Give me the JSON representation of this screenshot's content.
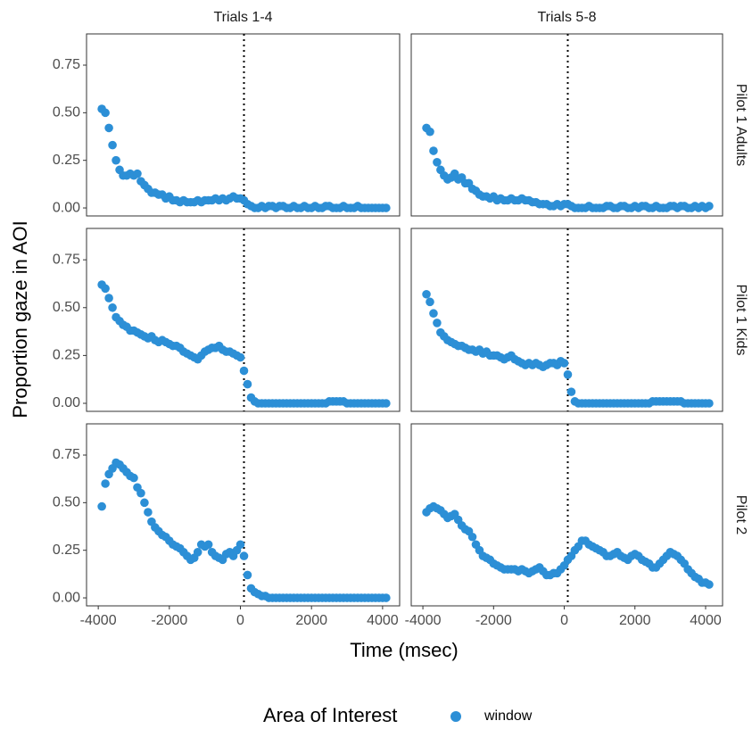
{
  "chart_data": {
    "type": "scatter",
    "xlabel": "Time (msec)",
    "ylabel": "Proportion gaze in AOI",
    "legend_title": "Area of Interest",
    "series_name": "window",
    "color": "#2c8fd6",
    "columns": [
      "Trials 1-4",
      "Trials 5-8"
    ],
    "rows": [
      "Pilot 1 Adults",
      "Pilot 1 Kids",
      "Pilot 2"
    ],
    "xlim": [
      -4330,
      4480
    ],
    "xticks": [
      -4000,
      -2000,
      0,
      2000,
      4000
    ],
    "ylim": [
      -0.042,
      0.914
    ],
    "yticks": [
      {
        "value": 0,
        "label": "0.00"
      },
      0.25,
      {
        "value": 0.5,
        "label": "0.50"
      },
      0.75
    ],
    "vline": 100,
    "x": [
      -3900,
      -3800,
      -3700,
      -3600,
      -3500,
      -3400,
      -3300,
      -3200,
      -3100,
      -3000,
      -2900,
      -2800,
      -2700,
      -2600,
      -2500,
      -2400,
      -2300,
      -2200,
      -2100,
      -2000,
      -1900,
      -1800,
      -1700,
      -1600,
      -1500,
      -1400,
      -1300,
      -1200,
      -1100,
      -1000,
      -900,
      -800,
      -700,
      -600,
      -500,
      -400,
      -300,
      -200,
      -100,
      0,
      100,
      200,
      300,
      400,
      500,
      600,
      700,
      800,
      900,
      1000,
      1100,
      1200,
      1300,
      1400,
      1500,
      1600,
      1700,
      1800,
      1900,
      2000,
      2100,
      2200,
      2300,
      2400,
      2500,
      2600,
      2700,
      2800,
      2900,
      3000,
      3100,
      3200,
      3300,
      3400,
      3500,
      3600,
      3700,
      3800,
      3900,
      4000,
      4100
    ],
    "panels": [
      {
        "values": [
          0.52,
          0.5,
          0.42,
          0.33,
          0.25,
          0.2,
          0.17,
          0.17,
          0.18,
          0.17,
          0.18,
          0.14,
          0.12,
          0.1,
          0.08,
          0.08,
          0.07,
          0.07,
          0.05,
          0.06,
          0.04,
          0.04,
          0.03,
          0.04,
          0.03,
          0.03,
          0.03,
          0.04,
          0.03,
          0.04,
          0.04,
          0.04,
          0.05,
          0.04,
          0.05,
          0.04,
          0.05,
          0.06,
          0.05,
          0.05,
          0.04,
          0.02,
          0.01,
          0.0,
          0.0,
          0.01,
          0.0,
          0.01,
          0.01,
          0.0,
          0.01,
          0.01,
          0.0,
          0.0,
          0.01,
          0.0,
          0.0,
          0.01,
          0.0,
          0.0,
          0.01,
          0.0,
          0.0,
          0.01,
          0.01,
          0.0,
          0.0,
          0.0,
          0.01,
          0.0,
          0.0,
          0.0,
          0.01,
          0.0,
          0.0,
          0.0,
          0.0,
          0.0,
          0.0,
          0.0,
          0.0
        ]
      },
      {
        "values": [
          0.42,
          0.4,
          0.3,
          0.24,
          0.2,
          0.17,
          0.15,
          0.16,
          0.18,
          0.15,
          0.16,
          0.13,
          0.13,
          0.1,
          0.09,
          0.07,
          0.06,
          0.06,
          0.05,
          0.06,
          0.04,
          0.05,
          0.04,
          0.04,
          0.05,
          0.04,
          0.04,
          0.05,
          0.04,
          0.04,
          0.03,
          0.03,
          0.02,
          0.02,
          0.02,
          0.01,
          0.01,
          0.02,
          0.01,
          0.02,
          0.02,
          0.01,
          0.0,
          0.0,
          0.0,
          0.0,
          0.01,
          0.0,
          0.0,
          0.0,
          0.0,
          0.01,
          0.01,
          0.0,
          0.0,
          0.01,
          0.01,
          0.0,
          0.0,
          0.01,
          0.0,
          0.01,
          0.01,
          0.0,
          0.0,
          0.01,
          0.0,
          0.0,
          0.0,
          0.01,
          0.01,
          0.0,
          0.01,
          0.01,
          0.0,
          0.0,
          0.01,
          0.0,
          0.01,
          0.0,
          0.01
        ]
      },
      {
        "values": [
          0.62,
          0.6,
          0.55,
          0.5,
          0.45,
          0.43,
          0.41,
          0.4,
          0.38,
          0.38,
          0.37,
          0.36,
          0.35,
          0.34,
          0.35,
          0.33,
          0.32,
          0.33,
          0.32,
          0.31,
          0.3,
          0.3,
          0.29,
          0.27,
          0.26,
          0.25,
          0.24,
          0.23,
          0.25,
          0.27,
          0.28,
          0.29,
          0.29,
          0.3,
          0.28,
          0.27,
          0.27,
          0.26,
          0.25,
          0.24,
          0.17,
          0.1,
          0.03,
          0.01,
          0.0,
          0.0,
          0.0,
          0.0,
          0.0,
          0.0,
          0.0,
          0.0,
          0.0,
          0.0,
          0.0,
          0.0,
          0.0,
          0.0,
          0.0,
          0.0,
          0.0,
          0.0,
          0.0,
          0.0,
          0.01,
          0.01,
          0.01,
          0.01,
          0.01,
          0.0,
          0.0,
          0.0,
          0.0,
          0.0,
          0.0,
          0.0,
          0.0,
          0.0,
          0.0,
          0.0,
          0.0
        ]
      },
      {
        "values": [
          0.57,
          0.53,
          0.47,
          0.42,
          0.37,
          0.35,
          0.33,
          0.32,
          0.31,
          0.3,
          0.3,
          0.29,
          0.28,
          0.28,
          0.27,
          0.28,
          0.26,
          0.27,
          0.25,
          0.25,
          0.25,
          0.24,
          0.23,
          0.24,
          0.25,
          0.23,
          0.22,
          0.21,
          0.2,
          0.21,
          0.2,
          0.21,
          0.2,
          0.19,
          0.2,
          0.21,
          0.21,
          0.2,
          0.22,
          0.21,
          0.15,
          0.06,
          0.01,
          0.0,
          0.0,
          0.0,
          0.0,
          0.0,
          0.0,
          0.0,
          0.0,
          0.0,
          0.0,
          0.0,
          0.0,
          0.0,
          0.0,
          0.0,
          0.0,
          0.0,
          0.0,
          0.0,
          0.0,
          0.0,
          0.01,
          0.01,
          0.01,
          0.01,
          0.01,
          0.01,
          0.01,
          0.01,
          0.01,
          0.0,
          0.0,
          0.0,
          0.0,
          0.0,
          0.0,
          0.0,
          0.0
        ]
      },
      {
        "values": [
          0.48,
          0.6,
          0.65,
          0.68,
          0.71,
          0.7,
          0.68,
          0.66,
          0.64,
          0.63,
          0.58,
          0.55,
          0.5,
          0.45,
          0.4,
          0.37,
          0.35,
          0.33,
          0.32,
          0.3,
          0.28,
          0.27,
          0.26,
          0.24,
          0.22,
          0.2,
          0.21,
          0.24,
          0.28,
          0.27,
          0.28,
          0.24,
          0.22,
          0.21,
          0.2,
          0.23,
          0.24,
          0.22,
          0.25,
          0.28,
          0.22,
          0.12,
          0.05,
          0.03,
          0.02,
          0.01,
          0.01,
          0.0,
          0.0,
          0.0,
          0.0,
          0.0,
          0.0,
          0.0,
          0.0,
          0.0,
          0.0,
          0.0,
          0.0,
          0.0,
          0.0,
          0.0,
          0.0,
          0.0,
          0.0,
          0.0,
          0.0,
          0.0,
          0.0,
          0.0,
          0.0,
          0.0,
          0.0,
          0.0,
          0.0,
          0.0,
          0.0,
          0.0,
          0.0,
          0.0,
          0.0
        ]
      },
      {
        "values": [
          0.45,
          0.47,
          0.48,
          0.47,
          0.46,
          0.44,
          0.42,
          0.43,
          0.44,
          0.41,
          0.38,
          0.36,
          0.35,
          0.32,
          0.28,
          0.25,
          0.22,
          0.21,
          0.2,
          0.18,
          0.17,
          0.16,
          0.15,
          0.15,
          0.15,
          0.15,
          0.14,
          0.15,
          0.14,
          0.13,
          0.14,
          0.15,
          0.16,
          0.14,
          0.12,
          0.12,
          0.13,
          0.13,
          0.15,
          0.17,
          0.2,
          0.22,
          0.25,
          0.27,
          0.3,
          0.3,
          0.28,
          0.27,
          0.26,
          0.25,
          0.24,
          0.22,
          0.22,
          0.23,
          0.24,
          0.22,
          0.21,
          0.2,
          0.22,
          0.23,
          0.22,
          0.2,
          0.19,
          0.18,
          0.16,
          0.16,
          0.18,
          0.2,
          0.22,
          0.24,
          0.23,
          0.22,
          0.2,
          0.18,
          0.15,
          0.13,
          0.11,
          0.1,
          0.08,
          0.08,
          0.07
        ]
      }
    ]
  }
}
